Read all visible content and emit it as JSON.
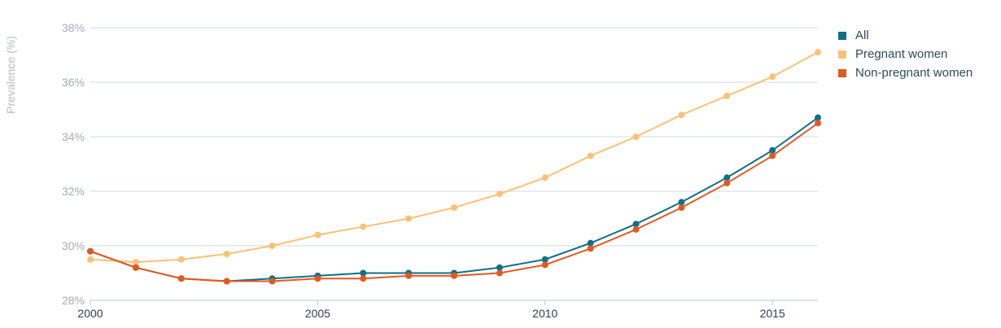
{
  "chart_data": {
    "type": "line",
    "title": "",
    "xlabel": "",
    "ylabel": "Prevalence (%)",
    "x": [
      2000,
      2001,
      2002,
      2003,
      2004,
      2005,
      2006,
      2007,
      2008,
      2009,
      2010,
      2011,
      2012,
      2013,
      2014,
      2015,
      2016
    ],
    "x_ticks": [
      2000,
      2005,
      2010,
      2015
    ],
    "x_tick_labels": [
      "2000",
      "2005",
      "2010",
      "2015"
    ],
    "xlim": [
      2000,
      2016
    ],
    "ylim": [
      28,
      38
    ],
    "y_ticks": [
      28,
      30,
      32,
      34,
      36,
      38
    ],
    "y_tick_labels": [
      "28%",
      "30%",
      "32%",
      "34%",
      "36%",
      "38%"
    ],
    "grid": true,
    "legend_position": "top-right",
    "series": [
      {
        "name": "All",
        "color": "#0f7088",
        "values": [
          29.8,
          29.2,
          28.8,
          28.7,
          28.8,
          28.9,
          29.0,
          29.0,
          29.0,
          29.2,
          29.5,
          30.1,
          30.8,
          31.6,
          32.5,
          33.5,
          34.7
        ]
      },
      {
        "name": "Pregnant women",
        "color": "#fbc177",
        "values": [
          29.5,
          29.4,
          29.5,
          29.7,
          30.0,
          30.4,
          30.7,
          31.0,
          31.4,
          31.9,
          32.5,
          33.3,
          34.0,
          34.8,
          35.5,
          36.2,
          37.1
        ]
      },
      {
        "name": "Non-pregnant women",
        "color": "#e2591f",
        "values": [
          29.8,
          29.2,
          28.8,
          28.7,
          28.7,
          28.8,
          28.8,
          28.9,
          28.9,
          29.0,
          29.3,
          29.9,
          30.6,
          31.4,
          32.3,
          33.3,
          34.5
        ]
      }
    ]
  }
}
